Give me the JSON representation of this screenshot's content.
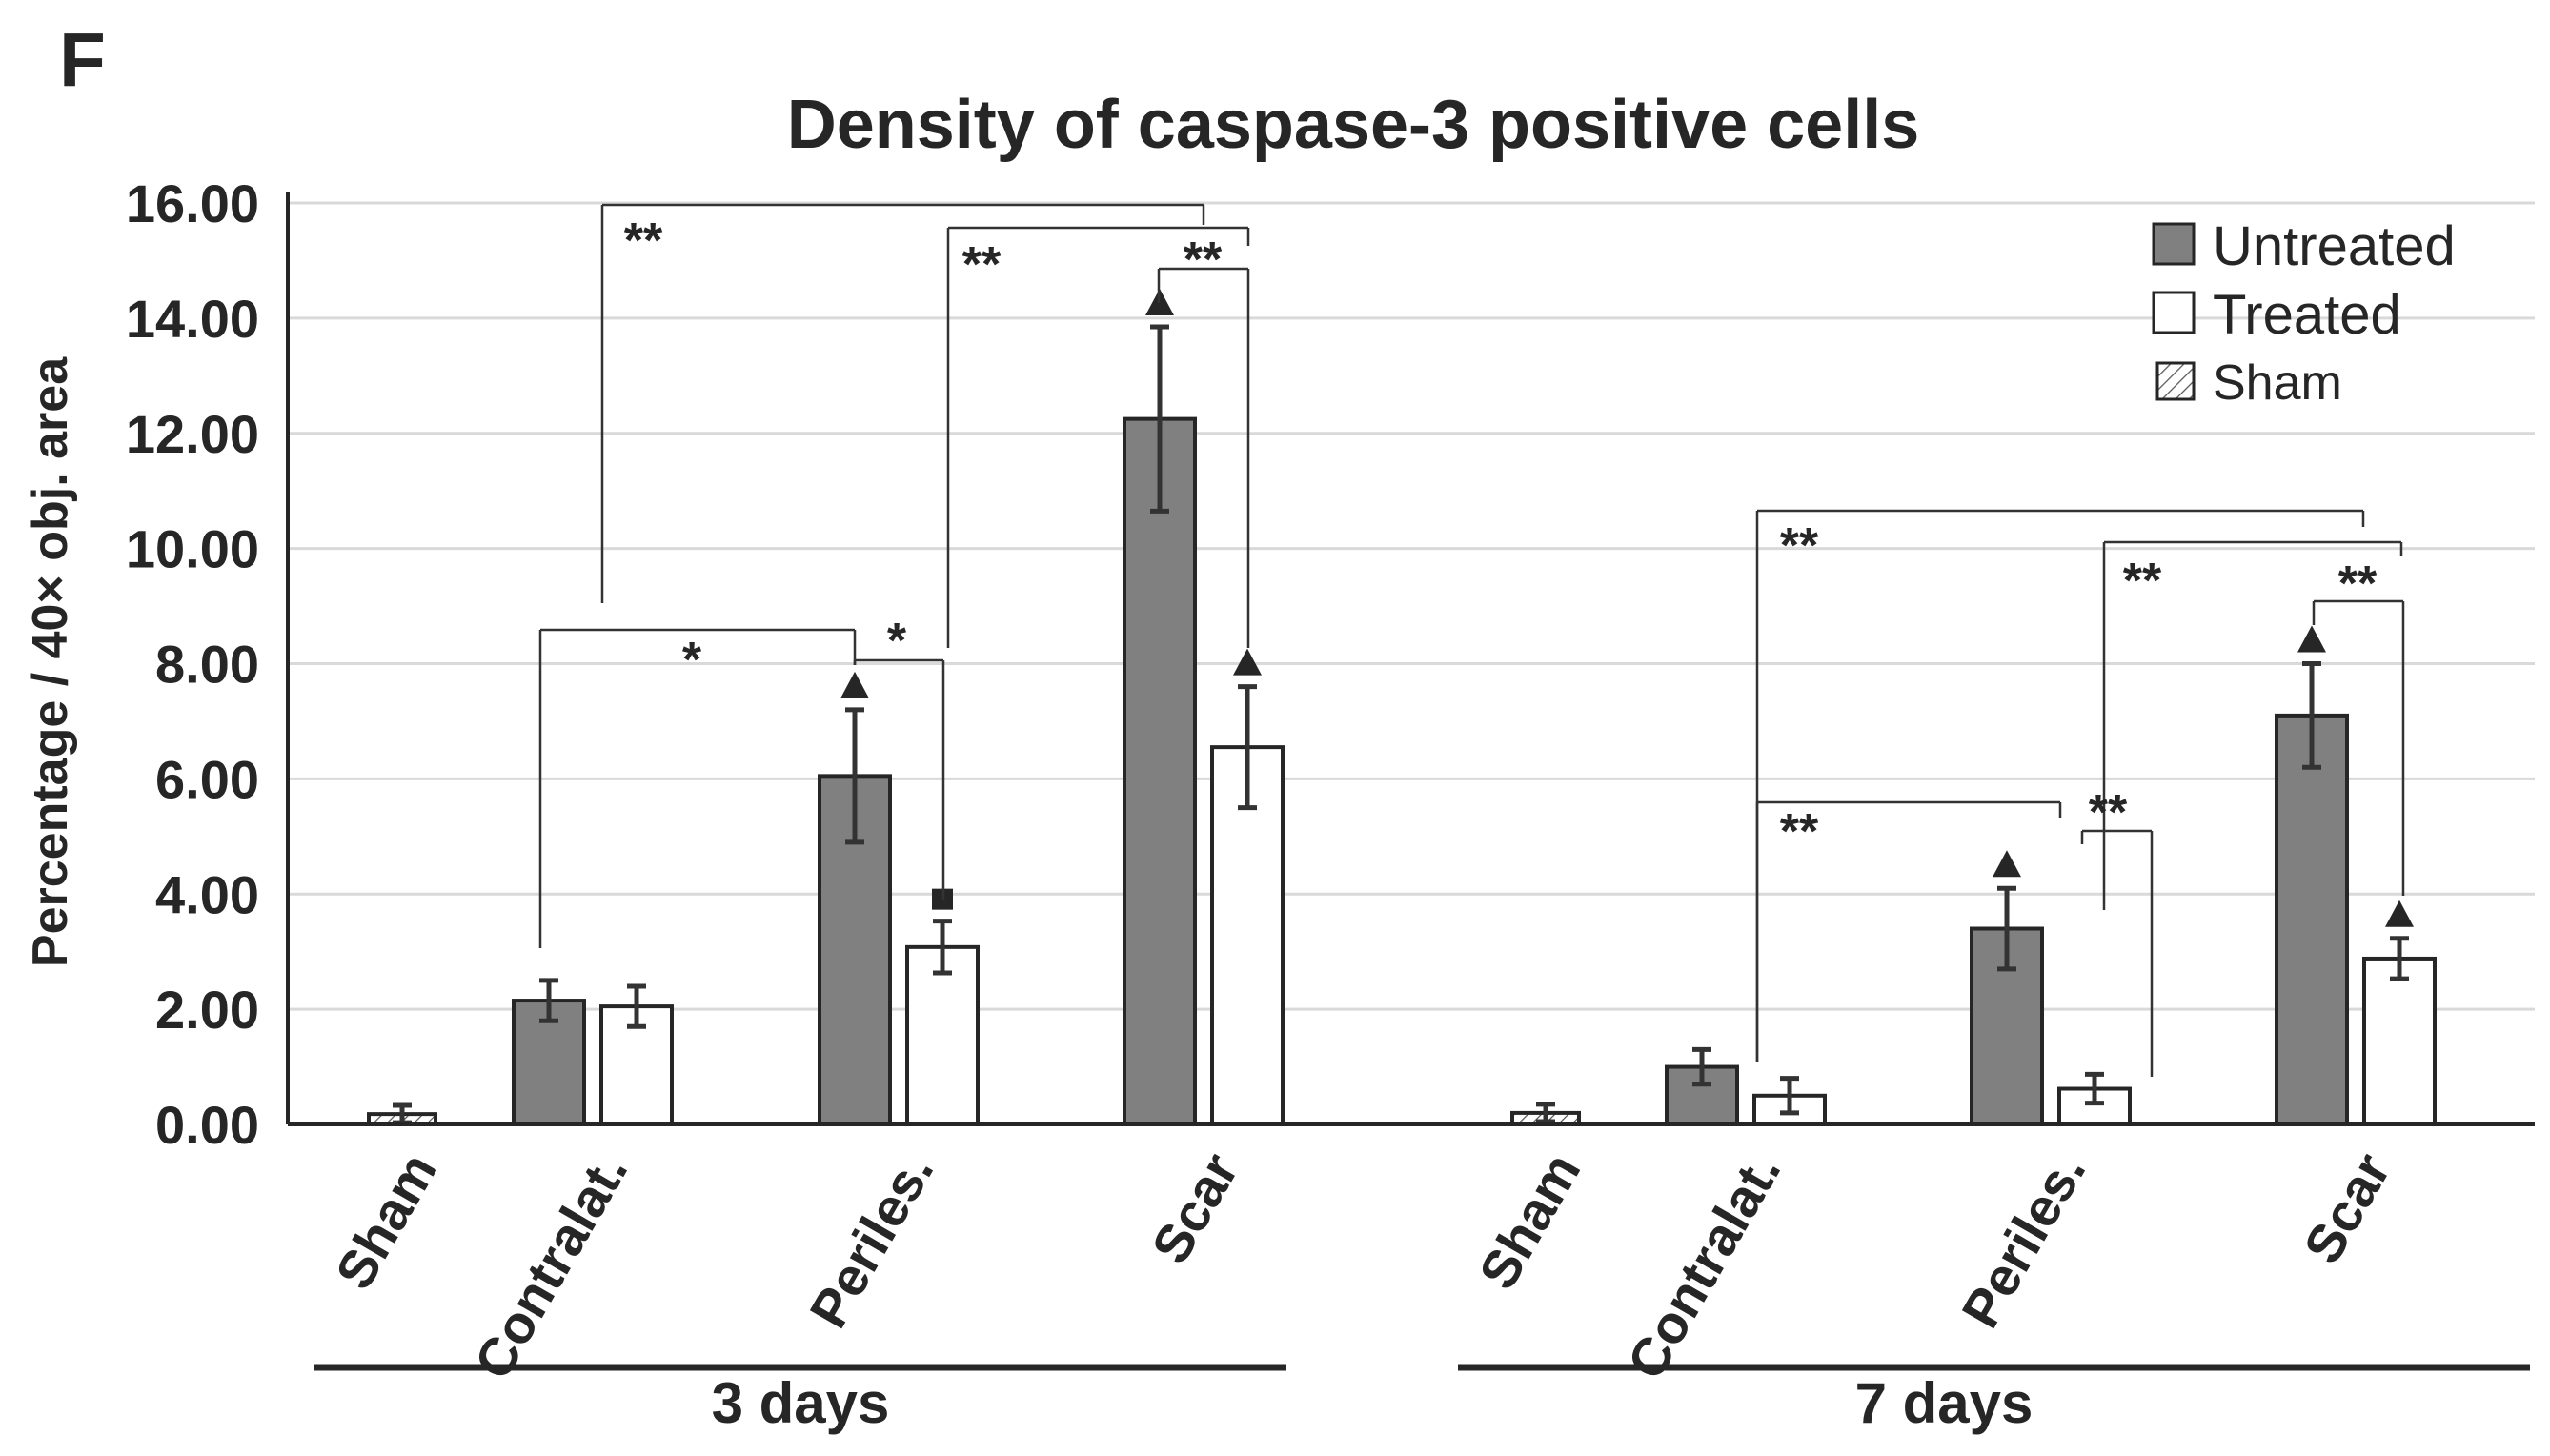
{
  "panel_label": "F",
  "chart_data": {
    "type": "bar",
    "title": "Density of caspase-3 positive cells",
    "ylabel": "Percentage / 40× obj. area",
    "ylim": [
      0,
      16
    ],
    "yticks": [
      "0.00",
      "2.00",
      "4.00",
      "6.00",
      "8.00",
      "10.00",
      "12.00",
      "14.00",
      "16.00"
    ],
    "grid": true,
    "legend_position": "top-right",
    "colors": {
      "Untreated": "#808080",
      "Treated": "#ffffff",
      "Sham": "hatched"
    },
    "groups": [
      {
        "label": "3 days",
        "categories": [
          {
            "label": "Sham",
            "bars": [
              {
                "series": "Sham",
                "value": 0.18,
                "err": 0.15
              }
            ]
          },
          {
            "label": "Contralat.",
            "bars": [
              {
                "series": "Untreated",
                "value": 2.15,
                "err": 0.35
              },
              {
                "series": "Treated",
                "value": 2.05,
                "err": 0.35
              }
            ]
          },
          {
            "label": "Periles.",
            "bars": [
              {
                "series": "Untreated",
                "value": 6.05,
                "err": 1.15,
                "marker": "triangle"
              },
              {
                "series": "Treated",
                "value": 3.08,
                "err": 0.45,
                "marker": "square"
              }
            ]
          },
          {
            "label": "Scar",
            "bars": [
              {
                "series": "Untreated",
                "value": 12.25,
                "err": 1.6,
                "marker": "triangle"
              },
              {
                "series": "Treated",
                "value": 6.55,
                "err": 1.05,
                "marker": "triangle"
              }
            ]
          }
        ]
      },
      {
        "label": "7 days",
        "categories": [
          {
            "label": "Sham",
            "bars": [
              {
                "series": "Sham",
                "value": 0.2,
                "err": 0.15
              }
            ]
          },
          {
            "label": "Contralat.",
            "bars": [
              {
                "series": "Untreated",
                "value": 1.0,
                "err": 0.3
              },
              {
                "series": "Treated",
                "value": 0.5,
                "err": 0.3
              }
            ]
          },
          {
            "label": "Periles.",
            "bars": [
              {
                "series": "Untreated",
                "value": 3.4,
                "err": 0.7,
                "marker": "triangle"
              },
              {
                "series": "Treated",
                "value": 0.62,
                "err": 0.25
              }
            ]
          },
          {
            "label": "Scar",
            "bars": [
              {
                "series": "Untreated",
                "value": 7.1,
                "err": 0.9,
                "marker": "triangle"
              },
              {
                "series": "Treated",
                "value": 2.88,
                "err": 0.35,
                "marker": "triangle"
              }
            ]
          }
        ]
      }
    ],
    "legend": [
      {
        "name": "Untreated",
        "style": "solid-gray"
      },
      {
        "name": "Treated",
        "style": "white"
      },
      {
        "name": "Sham",
        "style": "hatched"
      }
    ],
    "significance": [
      {
        "group": 0,
        "from": "Contralat.",
        "to": "Scar",
        "label": "**"
      },
      {
        "group": 0,
        "from": "Periles.",
        "to": "Scar",
        "label": "**"
      },
      {
        "group": 0,
        "from": "Scar",
        "to": "Scar",
        "label": "**",
        "between": "Untreated-Treated"
      },
      {
        "group": 0,
        "from": "Contralat.",
        "to": "Periles.",
        "label": "*"
      },
      {
        "group": 0,
        "from": "Periles.",
        "to": "Periles.",
        "label": "*",
        "between": "Untreated-Treated"
      },
      {
        "group": 1,
        "from": "Contralat.",
        "to": "Scar",
        "label": "**"
      },
      {
        "group": 1,
        "from": "Periles.",
        "to": "Scar",
        "label": "**"
      },
      {
        "group": 1,
        "from": "Scar",
        "to": "Scar",
        "label": "**",
        "between": "Untreated-Treated"
      },
      {
        "group": 1,
        "from": "Contralat.",
        "to": "Periles.",
        "label": "**"
      },
      {
        "group": 1,
        "from": "Periles.",
        "to": "Periles.",
        "label": "**",
        "between": "Untreated-Treated"
      }
    ]
  }
}
